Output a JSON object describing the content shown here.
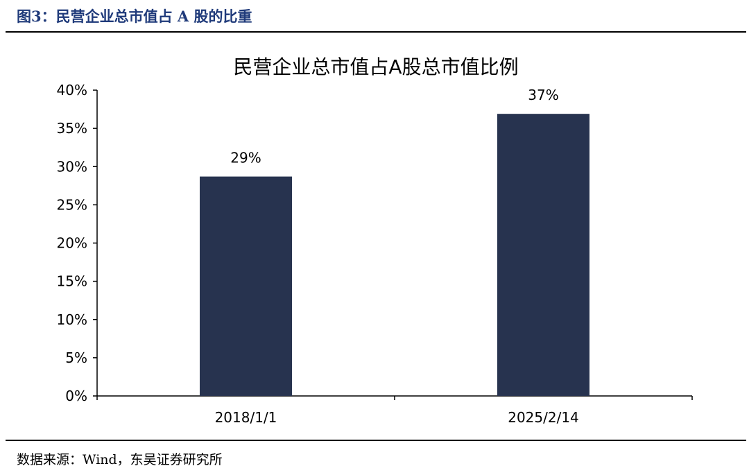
{
  "figure_caption": "图3：民营企业总市值占 A 股的比重",
  "source_note": "数据来源：Wind，东吴证券研究所",
  "colors": {
    "caption": "#1f3a7a",
    "bar": "#27334f",
    "axis": "#000000",
    "rule": "#000000"
  },
  "chart_data": {
    "type": "bar",
    "title": "民营企业总市值占A股总市值比例",
    "xlabel": "",
    "ylabel": "",
    "categories": [
      "2018/1/1",
      "2025/2/14"
    ],
    "values": [
      0.287,
      0.369
    ],
    "data_labels": [
      "29%",
      "37%"
    ],
    "ylim": [
      0,
      0.4
    ],
    "y_ticks": [
      0,
      0.05,
      0.1,
      0.15,
      0.2,
      0.25,
      0.3,
      0.35,
      0.4
    ],
    "y_tick_labels": [
      "0%",
      "5%",
      "10%",
      "15%",
      "20%",
      "25%",
      "30%",
      "35%",
      "40%"
    ],
    "grid": false,
    "legend": "none"
  }
}
